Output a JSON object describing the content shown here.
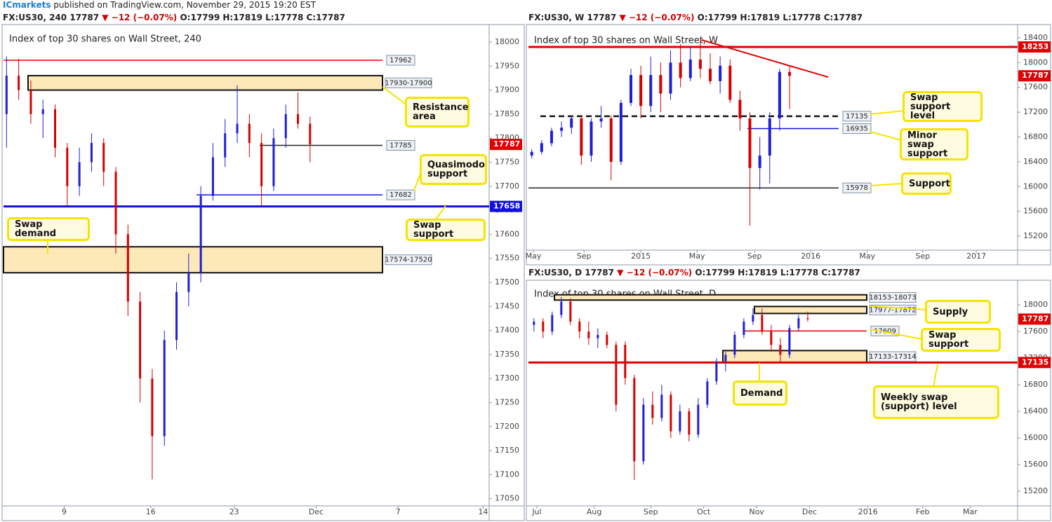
{
  "header": {
    "brand": "ICmarkets",
    "text": "published on TradingView.com, November 29, 2015 19:20 EST"
  },
  "chart_data": [
    {
      "type": "candlestick",
      "symbol": "FX:US30, 240",
      "last": "17787",
      "change": "▼ −12 (−0.07%)",
      "ohlc": "O:17799 H:17819 L:17778 C:17787",
      "title": "Index of top 30 shares on Wall Street, 240",
      "up_color": "#1f1fd6",
      "down_color": "#d40000",
      "ylim": [
        17035,
        18032
      ],
      "yticks": [
        17050,
        17100,
        17150,
        17200,
        17250,
        17300,
        17350,
        17400,
        17450,
        17500,
        17550,
        17600,
        17650,
        17700,
        17750,
        17800,
        17850,
        17900,
        17950,
        18000
      ],
      "xlim": [
        0,
        160
      ],
      "xticks": [
        {
          "value": 20,
          "label": "9"
        },
        {
          "value": 48.5,
          "label": "16"
        },
        {
          "value": 76,
          "label": "23"
        },
        {
          "value": 103,
          "label": "Dec"
        },
        {
          "value": 130,
          "label": "7"
        },
        {
          "value": 158,
          "label": "14"
        }
      ],
      "x": [
        1,
        5,
        9,
        13,
        17,
        21,
        25,
        29,
        33,
        37,
        41,
        45,
        49,
        53,
        57,
        61,
        65,
        69,
        73,
        77,
        81,
        85,
        89,
        93,
        97,
        101
      ],
      "open": [
        17850,
        17930,
        17900,
        17850,
        17860,
        17780,
        17700,
        17750,
        17790,
        17730,
        17600,
        17460,
        17300,
        17180,
        17380,
        17480,
        17520,
        17680,
        17760,
        17810,
        17830,
        17790,
        17700,
        17800,
        17850,
        17830
      ],
      "high": [
        17970,
        17965,
        17920,
        17880,
        17870,
        17790,
        17780,
        17810,
        17800,
        17740,
        17620,
        17480,
        17320,
        17400,
        17500,
        17560,
        17700,
        17790,
        17840,
        17910,
        17850,
        17810,
        17820,
        17870,
        17895,
        17845
      ],
      "low": [
        17780,
        17880,
        17830,
        17800,
        17760,
        17660,
        17680,
        17730,
        17700,
        17560,
        17430,
        17250,
        17090,
        17160,
        17360,
        17450,
        17500,
        17670,
        17740,
        17790,
        17760,
        17660,
        17690,
        17780,
        17820,
        17750
      ],
      "close": [
        17930,
        17900,
        17850,
        17860,
        17780,
        17700,
        17750,
        17790,
        17730,
        17600,
        17460,
        17300,
        17180,
        17380,
        17480,
        17520,
        17680,
        17760,
        17810,
        17830,
        17790,
        17700,
        17800,
        17850,
        17830,
        17787
      ],
      "last_price": 17787,
      "price_color": "#e00000",
      "levels": [
        {
          "value": 17962,
          "color": "#e00000",
          "style": "solid",
          "on_axis": false
        },
        {
          "value": 17785,
          "color": "#222222",
          "style": "solid",
          "on_axis": false
        },
        {
          "value": 17682,
          "color": "#1010e0",
          "style": "solid",
          "on_axis": false
        },
        {
          "value": 17658,
          "color": "#1010e0",
          "style": "thick",
          "on_axis": true
        }
      ],
      "zones": [
        {
          "high": 17930,
          "low": 17900,
          "label": "17930-17900"
        },
        {
          "high": 17574,
          "low": 17520,
          "label": "17574-17520"
        }
      ],
      "annotations": [
        "Resistance area",
        "Quasimodo support",
        "Swap support",
        "Swap demand"
      ]
    },
    {
      "type": "candlestick",
      "symbol": "FX:US30, W",
      "last": "17787",
      "change": "▼ −12 (−0.07%)",
      "ohlc": "O:17799 H:17819 L:17778 C:17787",
      "title": "Index of top 30 shares on Wall Street, W",
      "up_color": "#1f1fd6",
      "down_color": "#d40000",
      "ylim": [
        14974,
        18558
      ],
      "yticks": [
        15200,
        15600,
        16000,
        16400,
        16800,
        17200,
        17600,
        18000,
        18400
      ],
      "xlim": [
        0,
        148
      ],
      "xticks": [
        {
          "value": 1.5,
          "label": "May"
        },
        {
          "value": 16.8,
          "label": "Sep"
        },
        {
          "value": 34,
          "label": "2015"
        },
        {
          "value": 51,
          "label": "May"
        },
        {
          "value": 68.4,
          "label": "Sep"
        },
        {
          "value": 85.4,
          "label": "2016"
        },
        {
          "value": 102.5,
          "label": "May"
        },
        {
          "value": 119.3,
          "label": "Sep"
        },
        {
          "value": 135.5,
          "label": "2017"
        }
      ],
      "x": [
        1,
        4,
        7,
        10,
        13,
        16,
        19,
        22,
        25,
        28,
        31,
        34,
        37,
        40,
        43,
        46,
        49,
        52,
        55,
        58,
        61,
        64,
        67,
        70,
        73,
        76,
        79
      ],
      "open": [
        16500,
        16560,
        16700,
        16900,
        16950,
        17100,
        16500,
        17050,
        17100,
        16400,
        17350,
        17800,
        17300,
        17800,
        17500,
        18000,
        17750,
        18050,
        17900,
        17700,
        17950,
        17400,
        17100,
        16300,
        16500,
        17100,
        17850
      ],
      "high": [
        16600,
        16750,
        16950,
        17050,
        17150,
        17150,
        17100,
        17300,
        17150,
        17400,
        17900,
        17950,
        18100,
        18000,
        18200,
        18300,
        18250,
        18350,
        18150,
        18100,
        18050,
        17550,
        17200,
        16800,
        17200,
        17900,
        17950
      ],
      "low": [
        16450,
        16520,
        16650,
        16800,
        16850,
        16350,
        16400,
        16950,
        16100,
        16350,
        17300,
        17100,
        17200,
        17200,
        17400,
        17600,
        17700,
        17750,
        17650,
        17500,
        17350,
        16900,
        15370,
        15950,
        16050,
        16900,
        17250
      ],
      "close": [
        16560,
        16700,
        16900,
        16950,
        17100,
        16500,
        17050,
        17100,
        16400,
        17350,
        17800,
        17300,
        17800,
        17500,
        18000,
        17750,
        18050,
        17900,
        17700,
        17950,
        17400,
        17100,
        16300,
        16500,
        17100,
        17850,
        17787
      ],
      "last_price": 17787,
      "price_color": "#e00000",
      "trendline": {
        "x": [
          52.4,
          90.7
        ],
        "y": [
          18366,
          17766
        ],
        "color": "#e00000"
      },
      "levels": [
        {
          "value": 18253,
          "color": "#e00000",
          "style": "thick",
          "on_axis": true
        },
        {
          "value": 17135,
          "color": "#111111",
          "style": "dashed",
          "on_axis": false
        },
        {
          "value": 16935,
          "color": "#1010e0",
          "style": "solid",
          "on_axis": false
        },
        {
          "value": 15978,
          "color": "#222222",
          "style": "solid",
          "on_axis": false
        }
      ],
      "zones": [],
      "annotations": [
        "Swap support level",
        "Minor swap support",
        "Support"
      ]
    },
    {
      "type": "candlestick",
      "symbol": "FX:US30, D",
      "last": "17787",
      "change": "▼ −12 (−0.07%)",
      "ohlc": "O:17799 H:17819 L:17778 C:17787",
      "title": "Index of top 30 shares on Wall Street, D",
      "up_color": "#1f1fd6",
      "down_color": "#d40000",
      "ylim": [
        14979,
        18350
      ],
      "yticks": [
        15200,
        15600,
        16000,
        16400,
        16800,
        17200,
        17600,
        18000
      ],
      "xlim": [
        0,
        268
      ],
      "xticks": [
        {
          "value": 4.6,
          "label": "Jul"
        },
        {
          "value": 36,
          "label": "Aug"
        },
        {
          "value": 67,
          "label": "Sep"
        },
        {
          "value": 96,
          "label": "Oct"
        },
        {
          "value": 125,
          "label": "Nov"
        },
        {
          "value": 154,
          "label": "Dec"
        },
        {
          "value": 186,
          "label": "2016"
        },
        {
          "value": 216,
          "label": "Feb"
        },
        {
          "value": 242,
          "label": "Mar"
        }
      ],
      "x": [
        3,
        8,
        13,
        18,
        23,
        28,
        33,
        38,
        43,
        48,
        53,
        58,
        63,
        68,
        73,
        78,
        83,
        88,
        93,
        98,
        103,
        108,
        113,
        118,
        123,
        128,
        133,
        138,
        143,
        148,
        153
      ],
      "open": [
        17700,
        17750,
        17600,
        17850,
        18050,
        17750,
        17600,
        17500,
        17550,
        17400,
        17400,
        16900,
        15650,
        16500,
        16300,
        16650,
        16100,
        16400,
        16050,
        16500,
        16850,
        17150,
        17250,
        17550,
        17750,
        17850,
        17600,
        17400,
        17250,
        17650,
        17800
      ],
      "high": [
        17800,
        17800,
        17900,
        18120,
        18100,
        17800,
        17750,
        17650,
        17600,
        17450,
        17450,
        16950,
        16600,
        16700,
        16800,
        16700,
        16500,
        16450,
        16600,
        16900,
        17200,
        17300,
        17600,
        17800,
        17950,
        17950,
        17700,
        17500,
        17700,
        17850,
        17900
      ],
      "low": [
        17600,
        17500,
        17550,
        17800,
        17700,
        17500,
        17400,
        17350,
        17350,
        16400,
        16800,
        15370,
        15600,
        16200,
        16250,
        16000,
        16050,
        15950,
        16000,
        16450,
        16800,
        17000,
        17200,
        17500,
        17700,
        17550,
        17300,
        17150,
        17200,
        17600,
        17750
      ],
      "close": [
        17750,
        17600,
        17850,
        18050,
        17750,
        17600,
        17500,
        17550,
        17400,
        16500,
        16900,
        15650,
        16500,
        16300,
        16650,
        16100,
        16400,
        16050,
        16500,
        16850,
        17150,
        17250,
        17550,
        17750,
        17850,
        17600,
        17400,
        17250,
        17650,
        17800,
        17787
      ],
      "last_price": 17787,
      "price_color": "#e00000",
      "levels": [
        {
          "value": 17609,
          "color": "#e00000",
          "style": "solid",
          "on_axis": false
        },
        {
          "value": 17135,
          "color": "#e00000",
          "style": "thick",
          "on_axis": true
        }
      ],
      "zones": [
        {
          "high": 18153,
          "low": 18073,
          "label": "18153-18073"
        },
        {
          "high": 17977,
          "low": 17872,
          "label": "17977-17872"
        },
        {
          "high": 17314,
          "low": 17133,
          "label": "17133-17314"
        }
      ],
      "annotations": [
        "Supply",
        "Swap support",
        "Demand",
        "Weekly swap (support) level"
      ]
    }
  ]
}
